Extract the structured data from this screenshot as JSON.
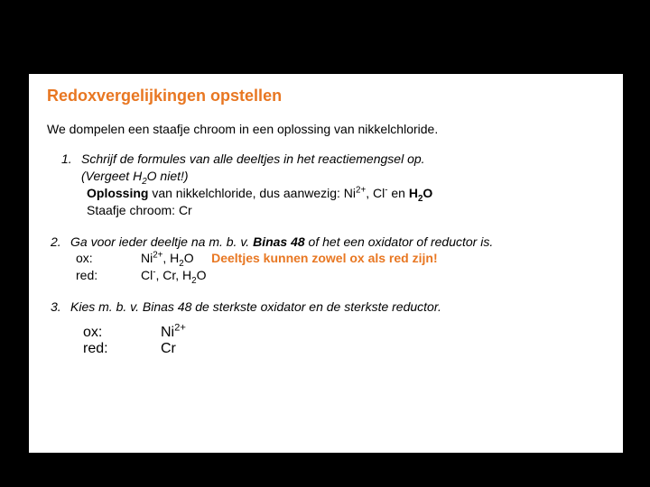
{
  "colors": {
    "title": "#e87722",
    "body_text": "#000000",
    "page_bg": "#ffffff",
    "outer_bg": "#000000",
    "accent": "#e87722"
  },
  "title": "Redoxvergelijkingen opstellen",
  "intro": "We dompelen een staafje chroom in een oplossing van nikkelchloride.",
  "step1": {
    "num": "1.",
    "line1": "Schrijf de formules van alle deeltjes in het reactiemengsel op.",
    "line2_a": "(Vergeet H",
    "line2_sub": "2",
    "line2_b": "O niet!)",
    "line3_a": "Oplossing",
    "line3_b": " van nikkelchloride, dus aanwezig:  Ni",
    "line3_sup1": "2+",
    "line3_c": ", Cl",
    "line3_sup2": "-",
    "line3_d": " en ",
    "line3_e": "H",
    "line3_sub2": "2",
    "line3_f": "O",
    "line4": "Staafje chroom: Cr"
  },
  "step2": {
    "num": "2.",
    "line1_a": "Ga voor ieder deeltje na m. b. v. ",
    "line1_b": "Binas 48",
    "line1_c": " of het een oxidator of reductor is.",
    "ox_label": "ox:",
    "ox_a": "Ni",
    "ox_sup1": "2+",
    "ox_b": ", H",
    "ox_sub": "2",
    "ox_c": "O",
    "ox_note": "Deeltjes kunnen zowel ox als red zijn!",
    "red_label": "red:",
    "red_a": "Cl",
    "red_sup": "-",
    "red_b": ", Cr, H",
    "red_sub": "2",
    "red_c": "O"
  },
  "step3": {
    "num": "3.",
    "line1": "Kies m. b. v. Binas 48 de sterkste oxidator en de sterkste reductor.",
    "ox_label": "ox:",
    "ox_a": "Ni",
    "ox_sup": "2+",
    "red_label": "red:",
    "red_val": "Cr"
  }
}
